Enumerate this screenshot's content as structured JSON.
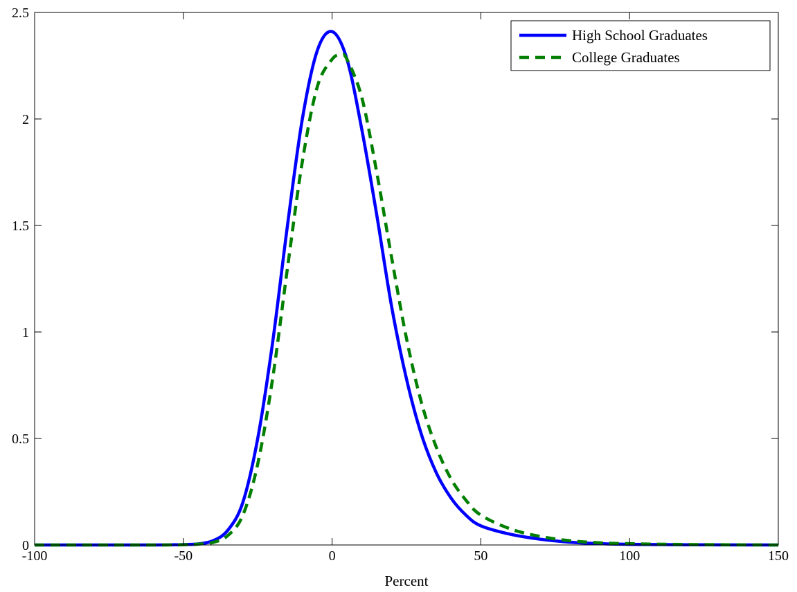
{
  "chart_data": {
    "type": "line",
    "title": "",
    "xlabel": "Percent",
    "ylabel": "",
    "xlim": [
      -100,
      150
    ],
    "ylim": [
      0,
      2.5
    ],
    "xticks": [
      -100,
      -50,
      0,
      50,
      100,
      150
    ],
    "yticks": [
      0,
      0.5,
      1,
      1.5,
      2,
      2.5
    ],
    "xtick_labels": [
      "-100",
      "-50",
      "0",
      "50",
      "100",
      "150"
    ],
    "ytick_labels": [
      "0",
      "0.5",
      "1",
      "1.5",
      "2",
      "2.5"
    ],
    "grid": false,
    "legend_position": "top-right",
    "series": [
      {
        "name": "High School Graduates",
        "color": "#0000ff",
        "style": "solid",
        "x": [
          -100,
          -60,
          -50,
          -45,
          -40,
          -35,
          -30,
          -25,
          -20,
          -15,
          -10,
          -5,
          0,
          5,
          10,
          15,
          20,
          25,
          30,
          35,
          40,
          45,
          50,
          60,
          70,
          80,
          90,
          100,
          120,
          150
        ],
        "y": [
          0,
          0,
          0.002,
          0.005,
          0.02,
          0.07,
          0.2,
          0.5,
          0.95,
          1.5,
          2.0,
          2.32,
          2.41,
          2.28,
          1.95,
          1.55,
          1.12,
          0.78,
          0.52,
          0.34,
          0.22,
          0.14,
          0.09,
          0.05,
          0.027,
          0.013,
          0.006,
          0.003,
          0.001,
          0
        ]
      },
      {
        "name": "College Graduates",
        "color": "#007f00",
        "style": "dashed",
        "x": [
          -100,
          -60,
          -50,
          -45,
          -40,
          -35,
          -30,
          -25,
          -20,
          -15,
          -10,
          -5,
          0,
          3,
          5,
          10,
          15,
          20,
          25,
          30,
          35,
          40,
          45,
          50,
          60,
          70,
          80,
          90,
          100,
          120,
          150
        ],
        "y": [
          0,
          0,
          0.001,
          0.004,
          0.012,
          0.045,
          0.14,
          0.38,
          0.78,
          1.3,
          1.8,
          2.15,
          2.28,
          2.3,
          2.28,
          2.1,
          1.75,
          1.35,
          0.97,
          0.67,
          0.46,
          0.31,
          0.21,
          0.14,
          0.075,
          0.04,
          0.02,
          0.01,
          0.006,
          0.002,
          0
        ]
      }
    ]
  }
}
